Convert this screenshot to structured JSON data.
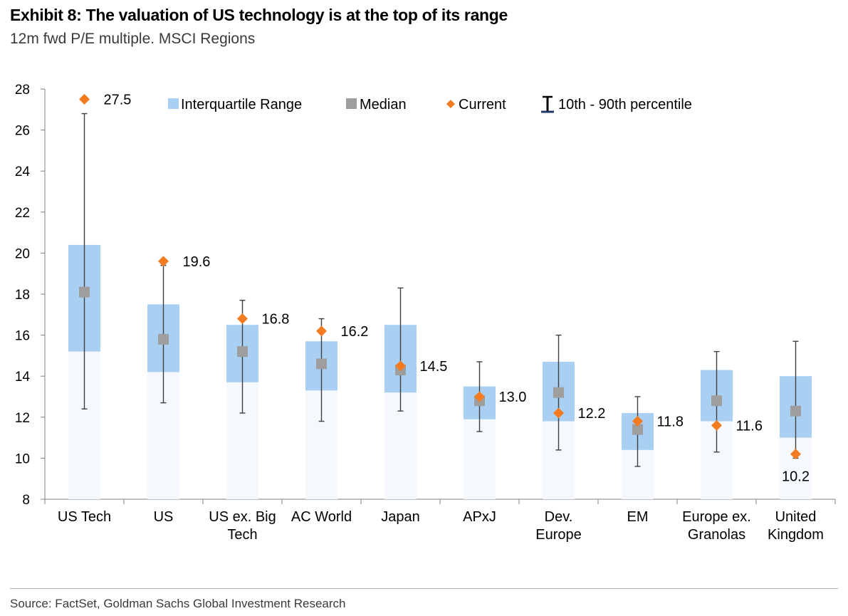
{
  "header": {
    "title": "Exhibit 8: The valuation of US technology is at the top of its range",
    "subtitle": "12m fwd P/E multiple. MSCI Regions"
  },
  "footer": {
    "source": "Source: FactSet, Goldman Sachs Global Investment Research"
  },
  "colors": {
    "iqr": "#a9d0f2",
    "median": "#9e9e9e",
    "current": "#f47b20",
    "whisker": "#404040",
    "axis": "#808080",
    "legend_whisker_bar": "#1f3864"
  },
  "chart_data": {
    "type": "box",
    "ylim": [
      8,
      28
    ],
    "yticks": [
      8,
      10,
      12,
      14,
      16,
      18,
      20,
      22,
      24,
      26,
      28
    ],
    "legend": [
      {
        "key": "iqr",
        "label": "Interquartile Range"
      },
      {
        "key": "median",
        "label": "Median"
      },
      {
        "key": "current",
        "label": "Current"
      },
      {
        "key": "p10_p90",
        "label": "10th - 90th percentile"
      }
    ],
    "legend_placement": "top-inside",
    "categories": [
      {
        "label_lines": [
          "US Tech"
        ],
        "p10": 12.4,
        "q1": 15.2,
        "median": 18.1,
        "q3": 20.4,
        "p90": 26.8,
        "current": 27.5,
        "current_label": "27.5"
      },
      {
        "label_lines": [
          "US"
        ],
        "p10": 12.7,
        "q1": 14.2,
        "median": 15.8,
        "q3": 17.5,
        "p90": 19.4,
        "current": 19.6,
        "current_label": "19.6"
      },
      {
        "label_lines": [
          "US ex. Big",
          "Tech"
        ],
        "p10": 12.2,
        "q1": 13.7,
        "median": 15.2,
        "q3": 16.5,
        "p90": 17.7,
        "current": 16.8,
        "current_label": "16.8"
      },
      {
        "label_lines": [
          "AC World"
        ],
        "p10": 11.8,
        "q1": 13.3,
        "median": 14.6,
        "q3": 15.7,
        "p90": 16.8,
        "current": 16.2,
        "current_label": "16.2"
      },
      {
        "label_lines": [
          "Japan"
        ],
        "p10": 12.3,
        "q1": 13.2,
        "median": 14.3,
        "q3": 16.5,
        "p90": 18.3,
        "current": 14.5,
        "current_label": "14.5"
      },
      {
        "label_lines": [
          "APxJ"
        ],
        "p10": 11.3,
        "q1": 11.9,
        "median": 12.8,
        "q3": 13.5,
        "p90": 14.7,
        "current": 13.0,
        "current_label": "13.0"
      },
      {
        "label_lines": [
          "Dev.",
          "Europe"
        ],
        "p10": 10.4,
        "q1": 11.8,
        "median": 13.2,
        "q3": 14.7,
        "p90": 16.0,
        "current": 12.2,
        "current_label": "12.2"
      },
      {
        "label_lines": [
          "EM"
        ],
        "p10": 9.6,
        "q1": 10.4,
        "median": 11.4,
        "q3": 12.2,
        "p90": 13.0,
        "current": 11.8,
        "current_label": "11.8"
      },
      {
        "label_lines": [
          "Europe ex.",
          "Granolas"
        ],
        "p10": 10.3,
        "q1": 11.8,
        "median": 12.8,
        "q3": 14.3,
        "p90": 15.2,
        "current": 11.6,
        "current_label": "11.6"
      },
      {
        "label_lines": [
          "United",
          "Kingdom"
        ],
        "p10": 10.0,
        "q1": 11.0,
        "median": 12.3,
        "q3": 14.0,
        "p90": 15.7,
        "current": 10.2,
        "current_label": "10.2"
      }
    ]
  }
}
